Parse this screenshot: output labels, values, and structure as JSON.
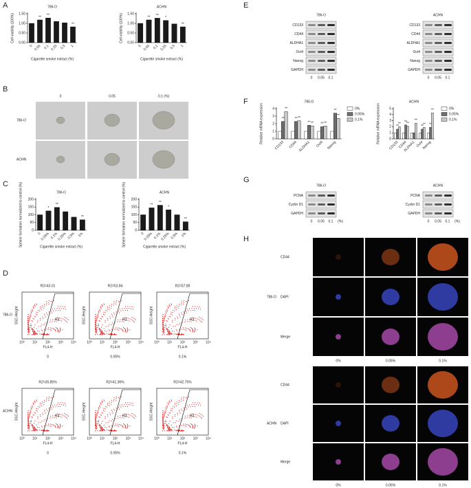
{
  "panel_letters": [
    "A",
    "B",
    "C",
    "D",
    "E",
    "F",
    "G",
    "H"
  ],
  "chart_data": [
    {
      "type": "bar",
      "title": "786-O",
      "categories": [
        "0",
        "0.05",
        "0.1",
        "0.25",
        "0.5",
        "1"
      ],
      "values": [
        1.0,
        1.18,
        1.28,
        1.1,
        1.03,
        0.82
      ],
      "annotations": [
        null,
        "**",
        "**",
        null,
        null,
        "**"
      ],
      "color": "#1a1a1a",
      "ylabel": "Cell viability (100%)",
      "xlabel": "Cigarette smoke extract (%)",
      "ylim": [
        0,
        1.5
      ],
      "yticks": [
        {
          "value": 0,
          "label": "0.00"
        },
        {
          "value": 0.5,
          "label": "0.50"
        },
        {
          "value": 1,
          "label": "1.00"
        },
        {
          "value": 1.5,
          "label": "1.50"
        }
      ]
    },
    {
      "type": "bar",
      "title": "ACHN",
      "categories": [
        "0",
        "0.05",
        "0.1",
        "0.25",
        "0.5",
        "1"
      ],
      "values": [
        1.0,
        1.18,
        1.27,
        1.15,
        0.97,
        0.82
      ],
      "annotations": [
        null,
        "**",
        "**",
        "*",
        null,
        "**"
      ],
      "color": "#1a1a1a",
      "ylabel": "Cell viability (100%)",
      "xlabel": "Cigarette smoke extract (%)",
      "ylim": [
        0,
        1.5
      ],
      "yticks": [
        {
          "value": 0,
          "label": "0.00"
        },
        {
          "value": 0.5,
          "label": "0.50"
        },
        {
          "value": 1,
          "label": "1.00"
        },
        {
          "value": 1.5,
          "label": "1.50"
        }
      ]
    },
    {
      "type": "bar",
      "title": "786-O",
      "categories": [
        "0",
        "0.05%",
        "0.1%",
        "0.25%",
        "0.5%",
        "1%"
      ],
      "values": [
        100,
        125,
        148,
        120,
        85,
        68
      ],
      "annotations": [
        null,
        "*",
        "**",
        null,
        null,
        "**"
      ],
      "color": "#1a1a1a",
      "ylabel": "Sphere formation normalized to control (%)",
      "xlabel": "Cigarette smoke extract (%)",
      "ylim": [
        0,
        200
      ],
      "yticks": [
        0,
        50,
        100,
        150,
        200
      ]
    },
    {
      "type": "bar",
      "title": "ACHN",
      "categories": [
        "0",
        "0.05%",
        "0.1%",
        "0.25%",
        "0.5%",
        "1%"
      ],
      "values": [
        100,
        145,
        162,
        132,
        100,
        55
      ],
      "annotations": [
        null,
        "**",
        "**",
        "*",
        null,
        "**"
      ],
      "color": "#1a1a1a",
      "ylabel": "Sphere formation normalized to control (%)",
      "xlabel": "Cigarette smoke extract (%)",
      "ylim": [
        0,
        200
      ],
      "yticks": [
        0,
        50,
        100,
        150,
        200
      ]
    },
    {
      "type": "bar",
      "title": "786-O",
      "categories": [
        "CD133",
        "CD44",
        "ALDHA1",
        "Oct4",
        "Nanog"
      ],
      "ylabel": "Relative mRNA expression",
      "ylim": [
        0,
        4
      ],
      "yticks": [
        0,
        1,
        2,
        3,
        4
      ],
      "legend": "right",
      "series": [
        {
          "name": "0%",
          "color": "#ffffff",
          "values": [
            1,
            1,
            1,
            1,
            1
          ]
        },
        {
          "name": "0.05%",
          "color": "#6e6e6e",
          "values": [
            2.3,
            2.3,
            1.8,
            1.6,
            3.4
          ],
          "annotations": [
            "**",
            "**",
            "**",
            "**",
            "**"
          ]
        },
        {
          "name": "0.1%",
          "color": "#c8c8c8",
          "values": [
            3.6,
            2.4,
            1.7,
            1.7,
            2.7
          ],
          "annotations": [
            "**",
            "**",
            "**",
            "**",
            "**"
          ]
        }
      ]
    },
    {
      "type": "bar",
      "title": "ACHN",
      "categories": [
        "CD133",
        "CD44",
        "ALDHA1",
        "Oct4",
        "Nanog"
      ],
      "ylabel": "Relative mRNA expression",
      "ylim": [
        0,
        5
      ],
      "yticks": [
        0,
        1,
        2,
        3,
        4,
        5
      ],
      "legend": "right",
      "series": [
        {
          "name": "0%",
          "color": "#ffffff",
          "values": [
            1,
            1,
            1,
            1,
            1
          ]
        },
        {
          "name": "0.05%",
          "color": "#6e6e6e",
          "values": [
            1.6,
            2.3,
            1.0,
            1.6,
            1.9
          ],
          "annotations": [
            "**",
            "**",
            null,
            "**",
            "**"
          ]
        },
        {
          "name": "0.1%",
          "color": "#c8c8c8",
          "values": [
            2.0,
            2.1,
            2.6,
            1.9,
            4.3
          ],
          "annotations": [
            "**",
            "**",
            "**",
            "**",
            "**"
          ]
        }
      ]
    }
  ],
  "sphere_images": {
    "columns": [
      "0",
      "0.05",
      "0.1   (%)"
    ],
    "rows": [
      "786-O",
      "ACHN"
    ]
  },
  "flow": {
    "rows": [
      "786-O",
      "ACHN"
    ],
    "columns": [
      "0",
      "0.05%",
      "0.1%"
    ],
    "gates": [
      [
        "R2=43.01",
        "R2=53.84",
        "R2=57.89"
      ],
      [
        "R2=35.85%",
        "R2=41.36%",
        "R2=42.75%"
      ]
    ],
    "ylabel": "SSC-Height",
    "xlabel": "FL4-H",
    "gate_label": "R2",
    "xtick_labels": [
      "10⁰",
      "10¹",
      "10²",
      "10³",
      "10⁴"
    ]
  },
  "western_E": {
    "groups": [
      "786-O",
      "ACHN"
    ],
    "proteins": [
      "CD133",
      "CD44",
      "ALDHA1",
      "Oct4",
      "Nanog",
      "GAPDH"
    ],
    "lanes": [
      "0",
      "0.05",
      "0.1"
    ]
  },
  "western_G": {
    "groups": [
      "786-O",
      "ACHN"
    ],
    "proteins": [
      "PCNA",
      "Cyclin D1",
      "GAPDH"
    ],
    "lanes": [
      "0",
      "0.05",
      "0.1",
      "(%)"
    ]
  },
  "fluorescence": {
    "groups": [
      "786-O",
      "ACHN"
    ],
    "stains": [
      "CD44",
      "DAPI",
      "Merge"
    ],
    "columns": [
      "0%",
      "0.05%",
      "0.1%"
    ]
  }
}
